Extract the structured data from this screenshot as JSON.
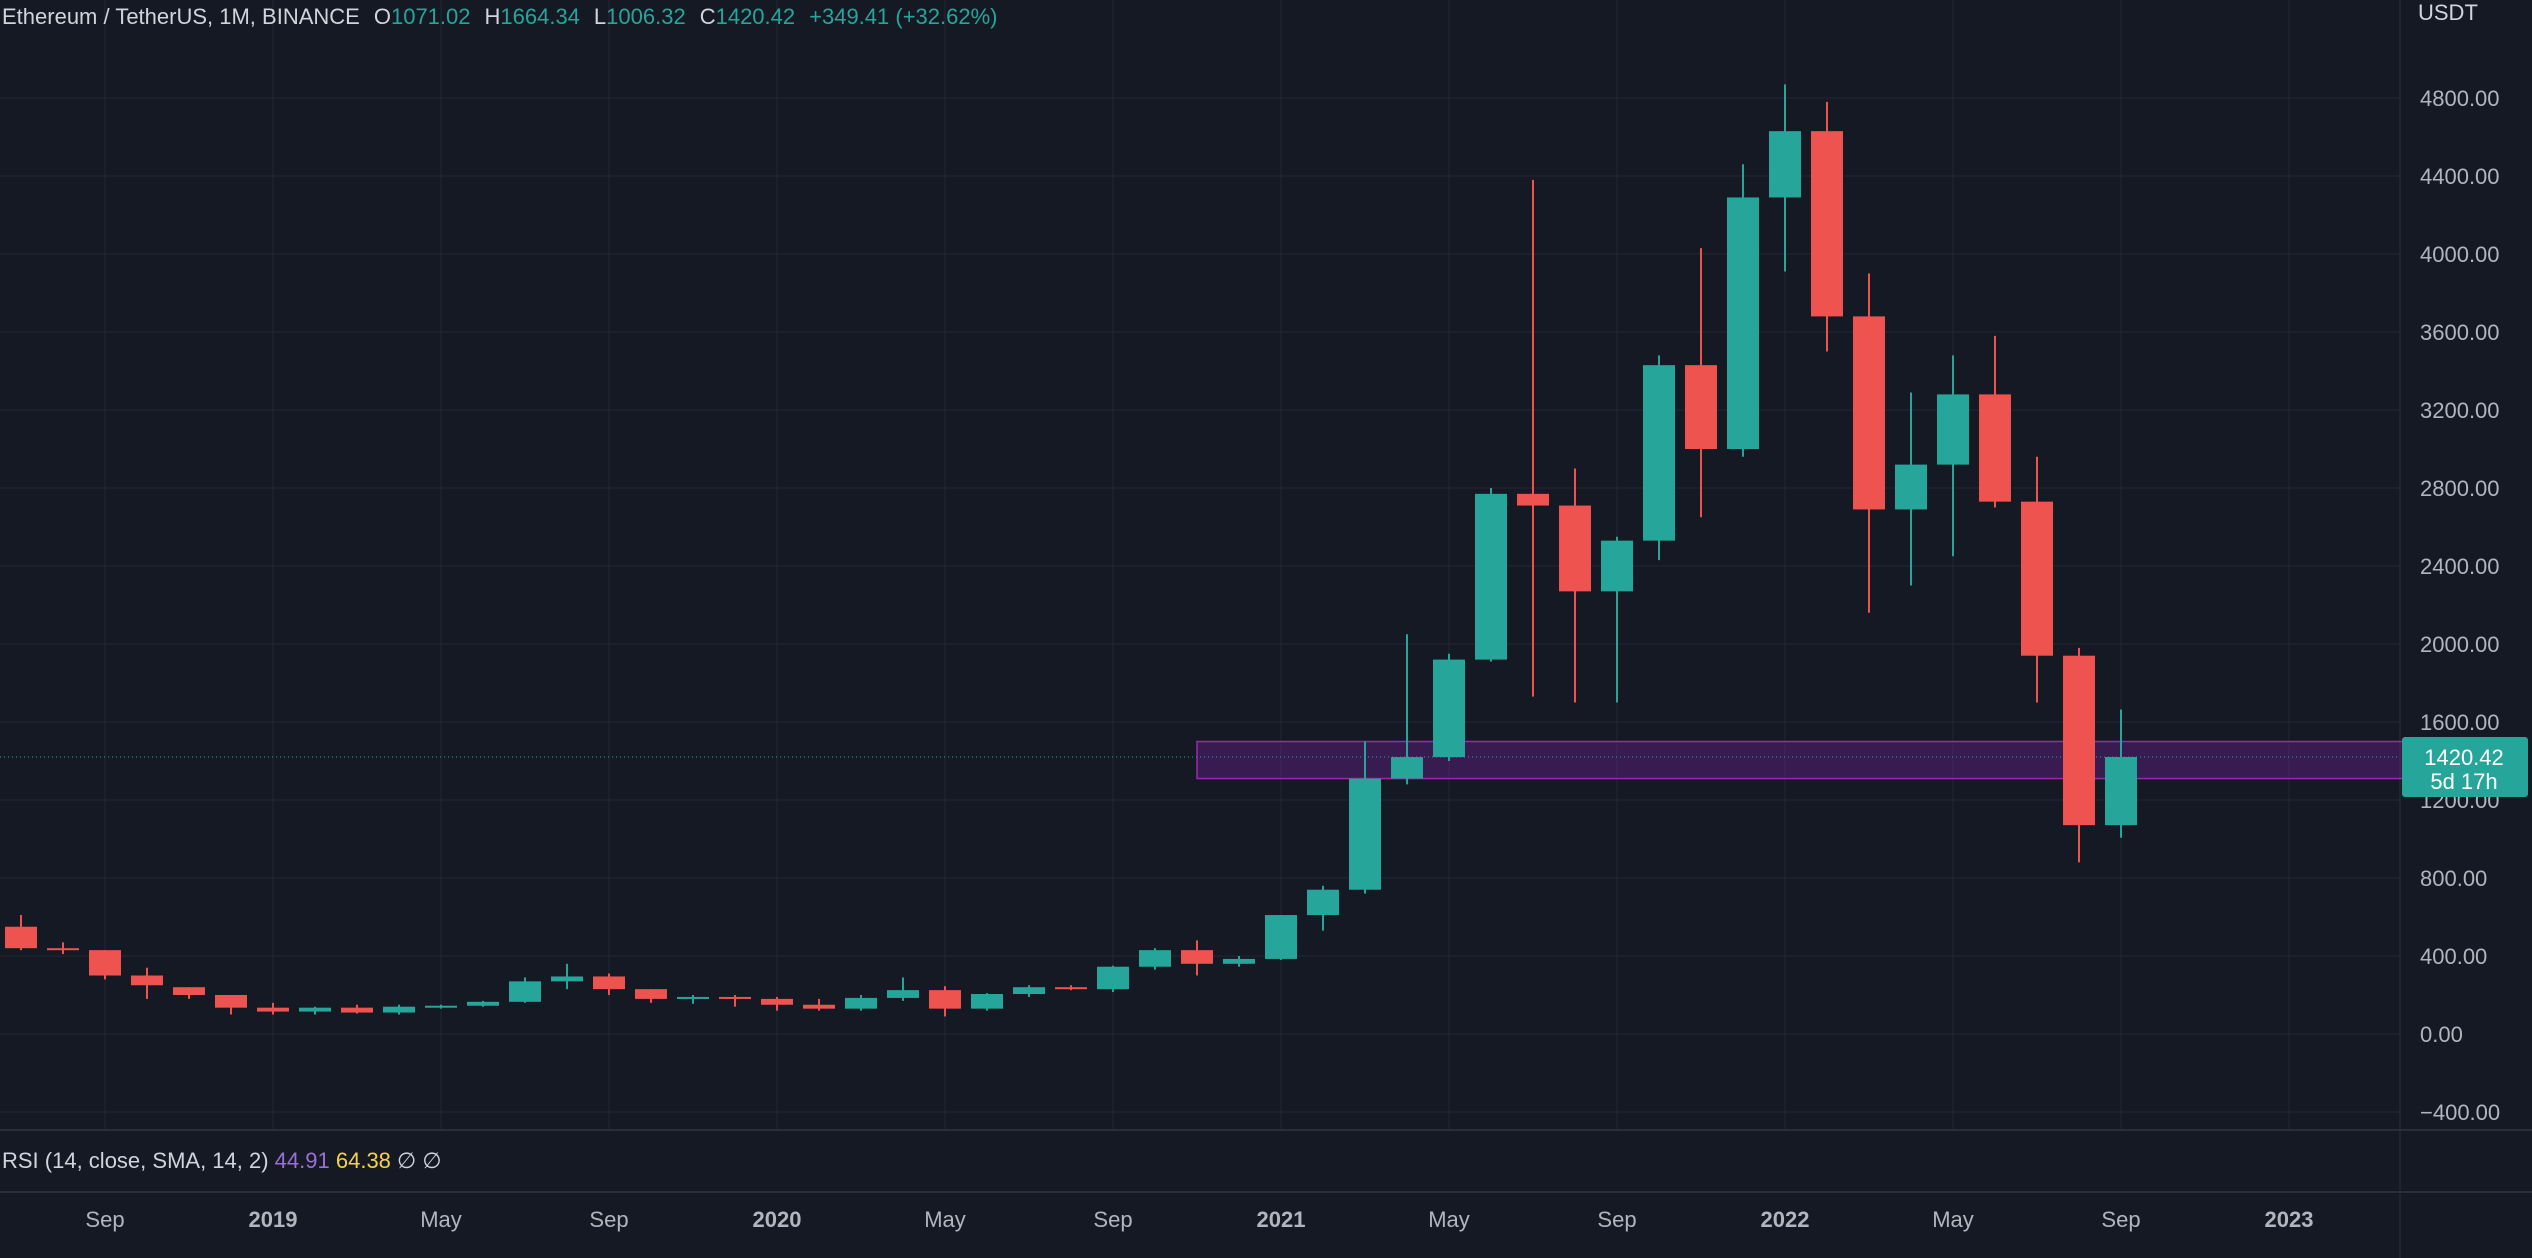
{
  "legend": {
    "symbol": "Ethereum / TetherUS, 1M, BINANCE",
    "o_label": "O",
    "o_value": "1071.02",
    "h_label": "H",
    "h_value": "1664.34",
    "l_label": "L",
    "l_value": "1006.32",
    "c_label": "C",
    "c_value": "1420.42",
    "change": "+349.41 (+32.62%)"
  },
  "price_axis": {
    "unit": "USDT",
    "ticks": [
      "4800.00",
      "4400.00",
      "4000.00",
      "3600.00",
      "3200.00",
      "2800.00",
      "2400.00",
      "2000.00",
      "1600.00",
      "1200.00",
      "800.00",
      "400.00",
      "0.00",
      "−400.00"
    ]
  },
  "last_price": {
    "value": "1420.42",
    "countdown": "5d 17h"
  },
  "rsi": {
    "label": "RSI (14, close, SMA, 14, 2)",
    "value1": "44.91",
    "value2": "64.38",
    "na1": "∅",
    "na2": "∅"
  },
  "time_axis": {
    "labels": [
      {
        "text": "Sep",
        "bold": false
      },
      {
        "text": "2019",
        "bold": true
      },
      {
        "text": "May",
        "bold": false
      },
      {
        "text": "Sep",
        "bold": false
      },
      {
        "text": "2020",
        "bold": true
      },
      {
        "text": "May",
        "bold": false
      },
      {
        "text": "Sep",
        "bold": false
      },
      {
        "text": "2021",
        "bold": true
      },
      {
        "text": "May",
        "bold": false
      },
      {
        "text": "Sep",
        "bold": false
      },
      {
        "text": "2022",
        "bold": true
      },
      {
        "text": "May",
        "bold": false
      },
      {
        "text": "Sep",
        "bold": false
      },
      {
        "text": "2023",
        "bold": true
      }
    ]
  },
  "colors": {
    "up": "#26a69a",
    "down": "#ef5350",
    "zone_fill": "#7b1fa2",
    "zone_border": "#9c27b0",
    "background": "#151924",
    "grid": "#232733"
  },
  "chart_data": {
    "type": "candlestick",
    "title": "Ethereum / TetherUS, 1M, BINANCE",
    "ylabel": "USDT",
    "ylim": [
      -400,
      5000
    ],
    "x_range": [
      "2018-07",
      "2023-02"
    ],
    "candles": [
      {
        "t": "2018-07",
        "o": 550,
        "h": 610,
        "l": 430,
        "c": 440
      },
      {
        "t": "2018-08",
        "o": 440,
        "h": 470,
        "l": 410,
        "c": 430
      },
      {
        "t": "2018-09",
        "o": 430,
        "h": 430,
        "l": 280,
        "c": 300
      },
      {
        "t": "2018-10",
        "o": 300,
        "h": 340,
        "l": 180,
        "c": 250
      },
      {
        "t": "2018-11",
        "o": 240,
        "h": 240,
        "l": 180,
        "c": 200
      },
      {
        "t": "2018-12",
        "o": 200,
        "h": 200,
        "l": 100,
        "c": 135
      },
      {
        "t": "2019-01",
        "o": 135,
        "h": 160,
        "l": 100,
        "c": 115
      },
      {
        "t": "2019-02",
        "o": 115,
        "h": 140,
        "l": 100,
        "c": 135
      },
      {
        "t": "2019-03",
        "o": 135,
        "h": 150,
        "l": 105,
        "c": 110
      },
      {
        "t": "2019-04",
        "o": 110,
        "h": 150,
        "l": 100,
        "c": 140
      },
      {
        "t": "2019-05",
        "o": 140,
        "h": 150,
        "l": 130,
        "c": 145
      },
      {
        "t": "2019-06",
        "o": 145,
        "h": 170,
        "l": 140,
        "c": 165
      },
      {
        "t": "2019-07",
        "o": 165,
        "h": 290,
        "l": 160,
        "c": 270
      },
      {
        "t": "2019-08",
        "o": 270,
        "h": 360,
        "l": 230,
        "c": 295
      },
      {
        "t": "2019-09",
        "o": 295,
        "h": 310,
        "l": 200,
        "c": 230
      },
      {
        "t": "2019-10",
        "o": 230,
        "h": 230,
        "l": 160,
        "c": 180
      },
      {
        "t": "2019-11",
        "o": 180,
        "h": 200,
        "l": 155,
        "c": 190
      },
      {
        "t": "2019-12",
        "o": 190,
        "h": 200,
        "l": 140,
        "c": 180
      },
      {
        "t": "2020-01",
        "o": 180,
        "h": 190,
        "l": 120,
        "c": 150
      },
      {
        "t": "2020-02",
        "o": 150,
        "h": 180,
        "l": 120,
        "c": 130
      },
      {
        "t": "2020-03",
        "o": 130,
        "h": 200,
        "l": 120,
        "c": 185
      },
      {
        "t": "2020-04",
        "o": 185,
        "h": 290,
        "l": 170,
        "c": 225
      },
      {
        "t": "2020-05",
        "o": 225,
        "h": 245,
        "l": 90,
        "c": 130
      },
      {
        "t": "2020-06",
        "o": 130,
        "h": 210,
        "l": 120,
        "c": 205
      },
      {
        "t": "2020-07",
        "o": 205,
        "h": 250,
        "l": 190,
        "c": 240
      },
      {
        "t": "2020-08",
        "o": 240,
        "h": 250,
        "l": 225,
        "c": 230
      },
      {
        "t": "2020-09",
        "o": 230,
        "h": 350,
        "l": 215,
        "c": 345
      },
      {
        "t": "2020-10",
        "o": 345,
        "h": 440,
        "l": 330,
        "c": 430
      },
      {
        "t": "2020-11",
        "o": 430,
        "h": 480,
        "l": 300,
        "c": 360
      },
      {
        "t": "2020-12",
        "o": 360,
        "h": 400,
        "l": 345,
        "c": 385
      },
      {
        "t": "2021-01",
        "o": 385,
        "h": 610,
        "l": 380,
        "c": 610
      },
      {
        "t": "2021-02",
        "o": 610,
        "h": 760,
        "l": 530,
        "c": 740
      },
      {
        "t": "2021-03",
        "o": 740,
        "h": 1500,
        "l": 720,
        "c": 1310
      },
      {
        "t": "2021-04",
        "o": 1310,
        "h": 2050,
        "l": 1280,
        "c": 1420
      },
      {
        "t": "2021-05",
        "o": 1420,
        "h": 1950,
        "l": 1400,
        "c": 1920
      },
      {
        "t": "2021-06",
        "o": 1920,
        "h": 2800,
        "l": 1910,
        "c": 2770
      },
      {
        "t": "2021-07",
        "o": 2770,
        "h": 4380,
        "l": 1730,
        "c": 2710
      },
      {
        "t": "2021-08",
        "o": 2710,
        "h": 2900,
        "l": 1700,
        "c": 2270
      },
      {
        "t": "2021-09",
        "o": 2270,
        "h": 2550,
        "l": 1700,
        "c": 2530
      },
      {
        "t": "2021-10",
        "o": 2530,
        "h": 3480,
        "l": 2430,
        "c": 3430
      },
      {
        "t": "2021-11",
        "o": 3430,
        "h": 4030,
        "l": 2650,
        "c": 3000
      },
      {
        "t": "2021-12",
        "o": 3000,
        "h": 4460,
        "l": 2960,
        "c": 4290
      },
      {
        "t": "2022-01",
        "o": 4290,
        "h": 4870,
        "l": 3910,
        "c": 4630
      },
      {
        "t": "2022-02",
        "o": 4630,
        "h": 4780,
        "l": 3500,
        "c": 3680
      },
      {
        "t": "2022-03",
        "o": 3680,
        "h": 3900,
        "l": 2160,
        "c": 2690
      },
      {
        "t": "2022-04",
        "o": 2690,
        "h": 3290,
        "l": 2300,
        "c": 2920
      },
      {
        "t": "2022-05",
        "o": 2920,
        "h": 3480,
        "l": 2450,
        "c": 3280
      },
      {
        "t": "2022-06",
        "o": 3280,
        "h": 3580,
        "l": 2700,
        "c": 2730
      },
      {
        "t": "2022-07",
        "o": 2730,
        "h": 2960,
        "l": 1700,
        "c": 1940
      },
      {
        "t": "2022-08",
        "o": 1940,
        "h": 1980,
        "l": 880,
        "c": 1071.02
      },
      {
        "t": "2022-09",
        "o": 1071.02,
        "h": 1664.34,
        "l": 1006.32,
        "c": 1420.42
      }
    ],
    "zone": {
      "from": "2021-01",
      "to": "2023-04",
      "low": 1310,
      "high": 1500
    },
    "last_price": 1420.42,
    "grid": true
  }
}
